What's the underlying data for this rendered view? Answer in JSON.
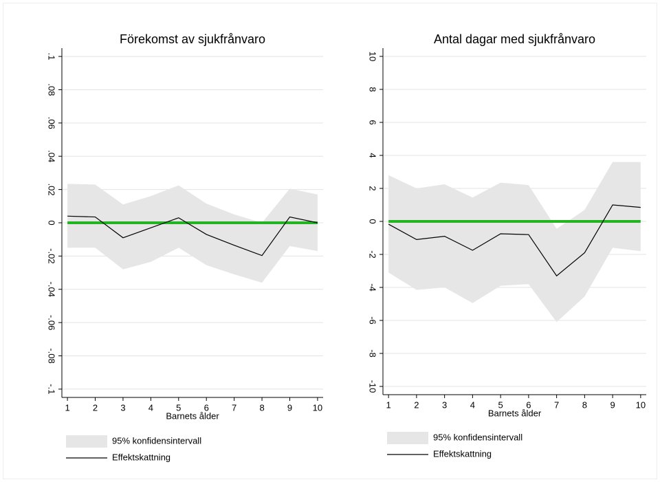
{
  "chart_data": [
    {
      "type": "line",
      "title": "Förekomst av sjukfrånvaro",
      "x_label": "Barnets ålder",
      "x": [
        1,
        2,
        3,
        4,
        5,
        6,
        7,
        8,
        9,
        10
      ],
      "xlim": [
        0.8,
        10.2
      ],
      "xticks": [
        1,
        2,
        3,
        4,
        5,
        6,
        7,
        8,
        9,
        10
      ],
      "ylim": [
        -0.105,
        0.105
      ],
      "yticks": [
        {
          "value": -0.1,
          "label": "-.1"
        },
        {
          "value": -0.08,
          "label": "-.08"
        },
        {
          "value": -0.06,
          "label": "-.06"
        },
        {
          "value": -0.04,
          "label": "-.04"
        },
        {
          "value": -0.02,
          "label": "-.02"
        },
        0,
        {
          "value": 0.02,
          "label": ".02"
        },
        {
          "value": 0.04,
          "label": ".04"
        },
        {
          "value": 0.06,
          "label": ".06"
        },
        {
          "value": 0.08,
          "label": ".08"
        },
        {
          "value": 0.1,
          "label": ".1"
        }
      ],
      "grid": true,
      "reference_line": {
        "value": 0,
        "color": "#22b422"
      },
      "series": [
        {
          "name": "95% konfidensintervall",
          "color": "#e6e6e6",
          "upper": [
            0.0234,
            0.023,
            0.011,
            0.016,
            0.0225,
            0.0115,
            0.005,
            0,
            0.0205,
            0.017
          ],
          "lower": [
            -0.015,
            -0.015,
            -0.028,
            -0.0235,
            -0.015,
            -0.0255,
            -0.031,
            -0.036,
            -0.014,
            -0.017
          ]
        },
        {
          "name": "Effektskattning",
          "color": "#000000",
          "values": [
            0.004,
            0.0035,
            -0.009,
            -0.003,
            0.003,
            -0.007,
            -0.0135,
            -0.0197,
            0.0035,
            0
          ]
        }
      ]
    },
    {
      "type": "line",
      "title": "Antal dagar med sjukfrånvaro",
      "x_label": "Barnets ålder",
      "x": [
        1,
        2,
        3,
        4,
        5,
        6,
        7,
        8,
        9,
        10
      ],
      "xlim": [
        0.8,
        10.2
      ],
      "xticks": [
        1,
        2,
        3,
        4,
        5,
        6,
        7,
        8,
        9,
        10
      ],
      "ylim": [
        -10.5,
        10.5
      ],
      "yticks": [
        -10,
        -8,
        -6,
        -4,
        -2,
        0,
        2,
        4,
        6,
        8,
        10
      ],
      "grid": true,
      "reference_line": {
        "value": 0,
        "color": "#22b422"
      },
      "series": [
        {
          "name": "95% konfidensintervall",
          "color": "#e6e6e6",
          "upper": [
            2.8,
            2.0,
            2.25,
            1.45,
            2.35,
            2.2,
            -0.45,
            0.7,
            3.6,
            3.6
          ],
          "lower": [
            -3.1,
            -4.15,
            -4.0,
            -4.95,
            -3.9,
            -3.8,
            -6.1,
            -4.55,
            -1.6,
            -1.8
          ]
        },
        {
          "name": "Effektskattning",
          "color": "#000000",
          "values": [
            -0.17,
            -1.1,
            -0.9,
            -1.75,
            -0.75,
            -0.8,
            -3.3,
            -1.9,
            1.0,
            0.85
          ]
        }
      ]
    }
  ]
}
